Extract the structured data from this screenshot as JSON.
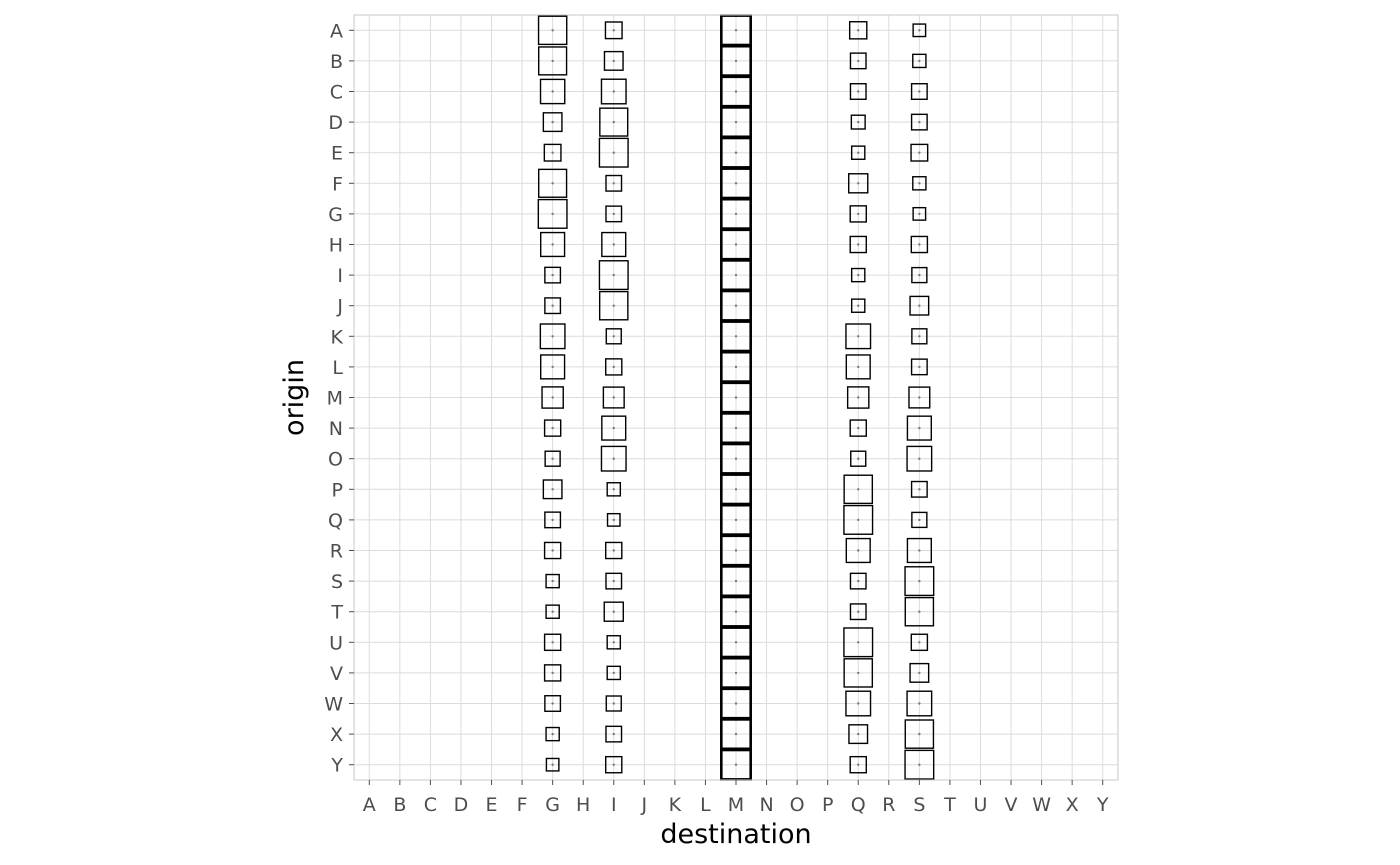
{
  "chart_data": {
    "type": "heatmap",
    "encoding": "square-size",
    "xlabel": "destination",
    "ylabel": "origin",
    "x_categories": [
      "A",
      "B",
      "C",
      "D",
      "E",
      "F",
      "G",
      "H",
      "I",
      "J",
      "K",
      "L",
      "M",
      "N",
      "O",
      "P",
      "Q",
      "R",
      "S",
      "T",
      "U",
      "V",
      "W",
      "X",
      "Y"
    ],
    "y_categories": [
      "A",
      "B",
      "C",
      "D",
      "E",
      "F",
      "G",
      "H",
      "I",
      "J",
      "K",
      "L",
      "M",
      "N",
      "O",
      "P",
      "Q",
      "R",
      "S",
      "T",
      "U",
      "V",
      "W",
      "X",
      "Y"
    ],
    "grid": true,
    "size_max": 1.0,
    "cells": [
      {
        "x": "G",
        "y": "A",
        "size": 0.92
      },
      {
        "x": "I",
        "y": "A",
        "size": 0.32
      },
      {
        "x": "M",
        "y": "A",
        "size": 1.0
      },
      {
        "x": "Q",
        "y": "A",
        "size": 0.34
      },
      {
        "x": "S",
        "y": "A",
        "size": 0.18
      },
      {
        "x": "G",
        "y": "B",
        "size": 0.9
      },
      {
        "x": "I",
        "y": "B",
        "size": 0.4
      },
      {
        "x": "M",
        "y": "B",
        "size": 1.0
      },
      {
        "x": "Q",
        "y": "B",
        "size": 0.28
      },
      {
        "x": "S",
        "y": "B",
        "size": 0.2
      },
      {
        "x": "G",
        "y": "C",
        "size": 0.68
      },
      {
        "x": "I",
        "y": "C",
        "size": 0.7
      },
      {
        "x": "M",
        "y": "C",
        "size": 1.0
      },
      {
        "x": "Q",
        "y": "C",
        "size": 0.28
      },
      {
        "x": "S",
        "y": "C",
        "size": 0.28
      },
      {
        "x": "G",
        "y": "D",
        "size": 0.4
      },
      {
        "x": "I",
        "y": "D",
        "size": 0.9
      },
      {
        "x": "M",
        "y": "D",
        "size": 1.0
      },
      {
        "x": "Q",
        "y": "D",
        "size": 0.22
      },
      {
        "x": "S",
        "y": "D",
        "size": 0.28
      },
      {
        "x": "G",
        "y": "E",
        "size": 0.32
      },
      {
        "x": "I",
        "y": "E",
        "size": 0.95
      },
      {
        "x": "M",
        "y": "E",
        "size": 1.0
      },
      {
        "x": "Q",
        "y": "E",
        "size": 0.2
      },
      {
        "x": "S",
        "y": "E",
        "size": 0.32
      },
      {
        "x": "G",
        "y": "F",
        "size": 0.9
      },
      {
        "x": "I",
        "y": "F",
        "size": 0.28
      },
      {
        "x": "M",
        "y": "F",
        "size": 1.0
      },
      {
        "x": "Q",
        "y": "F",
        "size": 0.42
      },
      {
        "x": "S",
        "y": "F",
        "size": 0.2
      },
      {
        "x": "G",
        "y": "G",
        "size": 0.95
      },
      {
        "x": "I",
        "y": "G",
        "size": 0.28
      },
      {
        "x": "M",
        "y": "G",
        "size": 1.0
      },
      {
        "x": "Q",
        "y": "G",
        "size": 0.3
      },
      {
        "x": "S",
        "y": "G",
        "size": 0.18
      },
      {
        "x": "G",
        "y": "H",
        "size": 0.66
      },
      {
        "x": "I",
        "y": "H",
        "size": 0.66
      },
      {
        "x": "M",
        "y": "H",
        "size": 1.0
      },
      {
        "x": "Q",
        "y": "H",
        "size": 0.3
      },
      {
        "x": "S",
        "y": "H",
        "size": 0.3
      },
      {
        "x": "G",
        "y": "I",
        "size": 0.28
      },
      {
        "x": "I",
        "y": "I",
        "size": 0.95
      },
      {
        "x": "M",
        "y": "I",
        "size": 1.0
      },
      {
        "x": "Q",
        "y": "I",
        "size": 0.2
      },
      {
        "x": "S",
        "y": "I",
        "size": 0.26
      },
      {
        "x": "G",
        "y": "J",
        "size": 0.28
      },
      {
        "x": "I",
        "y": "J",
        "size": 0.92
      },
      {
        "x": "M",
        "y": "J",
        "size": 1.0
      },
      {
        "x": "Q",
        "y": "J",
        "size": 0.2
      },
      {
        "x": "S",
        "y": "J",
        "size": 0.4
      },
      {
        "x": "G",
        "y": "K",
        "size": 0.7
      },
      {
        "x": "I",
        "y": "K",
        "size": 0.26
      },
      {
        "x": "M",
        "y": "K",
        "size": 1.0
      },
      {
        "x": "Q",
        "y": "K",
        "size": 0.7
      },
      {
        "x": "S",
        "y": "K",
        "size": 0.26
      },
      {
        "x": "G",
        "y": "L",
        "size": 0.66
      },
      {
        "x": "I",
        "y": "L",
        "size": 0.3
      },
      {
        "x": "M",
        "y": "L",
        "size": 1.0
      },
      {
        "x": "Q",
        "y": "L",
        "size": 0.66
      },
      {
        "x": "S",
        "y": "L",
        "size": 0.28
      },
      {
        "x": "G",
        "y": "M",
        "size": 0.52
      },
      {
        "x": "I",
        "y": "M",
        "size": 0.5
      },
      {
        "x": "M",
        "y": "M",
        "size": 1.0
      },
      {
        "x": "Q",
        "y": "M",
        "size": 0.52
      },
      {
        "x": "S",
        "y": "M",
        "size": 0.5
      },
      {
        "x": "G",
        "y": "N",
        "size": 0.3
      },
      {
        "x": "I",
        "y": "N",
        "size": 0.66
      },
      {
        "x": "M",
        "y": "N",
        "size": 1.0
      },
      {
        "x": "Q",
        "y": "N",
        "size": 0.3
      },
      {
        "x": "S",
        "y": "N",
        "size": 0.66
      },
      {
        "x": "G",
        "y": "O",
        "size": 0.26
      },
      {
        "x": "I",
        "y": "O",
        "size": 0.7
      },
      {
        "x": "M",
        "y": "O",
        "size": 1.0
      },
      {
        "x": "Q",
        "y": "O",
        "size": 0.26
      },
      {
        "x": "S",
        "y": "O",
        "size": 0.7
      },
      {
        "x": "G",
        "y": "P",
        "size": 0.4
      },
      {
        "x": "I",
        "y": "P",
        "size": 0.2
      },
      {
        "x": "M",
        "y": "P",
        "size": 1.0
      },
      {
        "x": "Q",
        "y": "P",
        "size": 0.92
      },
      {
        "x": "S",
        "y": "P",
        "size": 0.28
      },
      {
        "x": "G",
        "y": "Q",
        "size": 0.28
      },
      {
        "x": "I",
        "y": "Q",
        "size": 0.18
      },
      {
        "x": "M",
        "y": "Q",
        "size": 1.0
      },
      {
        "x": "Q",
        "y": "Q",
        "size": 0.95
      },
      {
        "x": "S",
        "y": "Q",
        "size": 0.26
      },
      {
        "x": "G",
        "y": "R",
        "size": 0.3
      },
      {
        "x": "I",
        "y": "R",
        "size": 0.3
      },
      {
        "x": "M",
        "y": "R",
        "size": 1.0
      },
      {
        "x": "Q",
        "y": "R",
        "size": 0.66
      },
      {
        "x": "S",
        "y": "R",
        "size": 0.66
      },
      {
        "x": "G",
        "y": "S",
        "size": 0.2
      },
      {
        "x": "I",
        "y": "S",
        "size": 0.28
      },
      {
        "x": "M",
        "y": "S",
        "size": 1.0
      },
      {
        "x": "Q",
        "y": "S",
        "size": 0.28
      },
      {
        "x": "S",
        "y": "S",
        "size": 0.95
      },
      {
        "x": "G",
        "y": "T",
        "size": 0.2
      },
      {
        "x": "I",
        "y": "T",
        "size": 0.42
      },
      {
        "x": "M",
        "y": "T",
        "size": 1.0
      },
      {
        "x": "Q",
        "y": "T",
        "size": 0.28
      },
      {
        "x": "S",
        "y": "T",
        "size": 0.92
      },
      {
        "x": "G",
        "y": "U",
        "size": 0.3
      },
      {
        "x": "I",
        "y": "U",
        "size": 0.2
      },
      {
        "x": "M",
        "y": "U",
        "size": 1.0
      },
      {
        "x": "Q",
        "y": "U",
        "size": 0.95
      },
      {
        "x": "S",
        "y": "U",
        "size": 0.3
      },
      {
        "x": "G",
        "y": "V",
        "size": 0.3
      },
      {
        "x": "I",
        "y": "V",
        "size": 0.2
      },
      {
        "x": "M",
        "y": "V",
        "size": 1.0
      },
      {
        "x": "Q",
        "y": "V",
        "size": 0.92
      },
      {
        "x": "S",
        "y": "V",
        "size": 0.4
      },
      {
        "x": "G",
        "y": "W",
        "size": 0.28
      },
      {
        "x": "I",
        "y": "W",
        "size": 0.26
      },
      {
        "x": "M",
        "y": "W",
        "size": 1.0
      },
      {
        "x": "Q",
        "y": "W",
        "size": 0.7
      },
      {
        "x": "S",
        "y": "W",
        "size": 0.7
      },
      {
        "x": "G",
        "y": "X",
        "size": 0.2
      },
      {
        "x": "I",
        "y": "X",
        "size": 0.28
      },
      {
        "x": "M",
        "y": "X",
        "size": 1.0
      },
      {
        "x": "Q",
        "y": "X",
        "size": 0.4
      },
      {
        "x": "S",
        "y": "X",
        "size": 0.92
      },
      {
        "x": "G",
        "y": "Y",
        "size": 0.18
      },
      {
        "x": "I",
        "y": "Y",
        "size": 0.3
      },
      {
        "x": "M",
        "y": "Y",
        "size": 1.0
      },
      {
        "x": "Q",
        "y": "Y",
        "size": 0.3
      },
      {
        "x": "S",
        "y": "Y",
        "size": 0.95
      }
    ]
  }
}
